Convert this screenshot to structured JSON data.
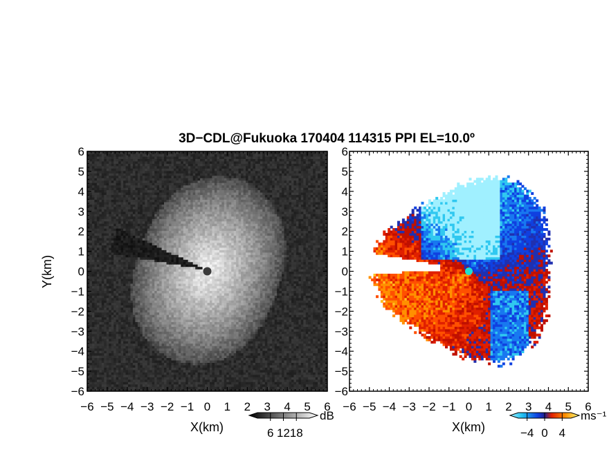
{
  "title": "3D−CDL@Fukuoka 170404 114315 PPI EL=10.0º",
  "colors": {
    "background": "#ffffff",
    "axis": "#000000",
    "velocity_negative_dark": "#1030e0",
    "velocity_negative_light": "#30c8f0",
    "velocity_positive_dark": "#e02000",
    "velocity_positive_light": "#ffe040",
    "radar_marker_left": "#3a3a3a",
    "radar_marker_right": "#20e0d0"
  },
  "chart_data": [
    {
      "type": "heatmap",
      "name": "reflectivity-panel",
      "title": "",
      "xlabel": "X(km)",
      "ylabel": "Y(km)",
      "xlim": [
        -6,
        6
      ],
      "ylim": [
        -6,
        6
      ],
      "x_ticks": [
        "−6",
        "−5",
        "−4",
        "−3",
        "−2",
        "−1",
        "0",
        "1",
        "2",
        "3",
        "4",
        "5",
        "6"
      ],
      "y_ticks": [
        "6",
        "5",
        "4",
        "3",
        "2",
        "1",
        "0",
        "−1",
        "−2",
        "−3",
        "−4",
        "−5",
        "−6"
      ],
      "grid": false,
      "colormap": "grayscale",
      "colorbar": {
        "unit": "dB",
        "ticks": [
          6,
          12,
          18
        ],
        "tick_labels": [
          "6",
          "12",
          "18"
        ],
        "range": [
          0,
          24
        ]
      },
      "radar_site": [
        0,
        0
      ],
      "beam_blockage_azimuth_deg": [
        280,
        295
      ]
    },
    {
      "type": "heatmap",
      "name": "velocity-panel",
      "title": "",
      "xlabel": "X(km)",
      "ylabel": "",
      "xlim": [
        -6,
        6
      ],
      "ylim": [
        -6,
        6
      ],
      "x_ticks": [
        "−6",
        "−5",
        "−4",
        "−3",
        "−2",
        "−1",
        "0",
        "1",
        "2",
        "3",
        "4",
        "5",
        "6"
      ],
      "y_ticks": [
        "6",
        "5",
        "4",
        "3",
        "2",
        "1",
        "0",
        "−1",
        "−2",
        "−3",
        "−4",
        "−5",
        "−6"
      ],
      "grid": false,
      "colormap": "diverging blue-red",
      "colorbar": {
        "unit": "ms⁻¹",
        "ticks": [
          -4,
          0,
          4
        ],
        "tick_labels": [
          "−4",
          "0",
          "4"
        ],
        "range": [
          -6,
          6
        ]
      },
      "radar_site": [
        0,
        0
      ],
      "data_extent_km": 4.4
    }
  ]
}
